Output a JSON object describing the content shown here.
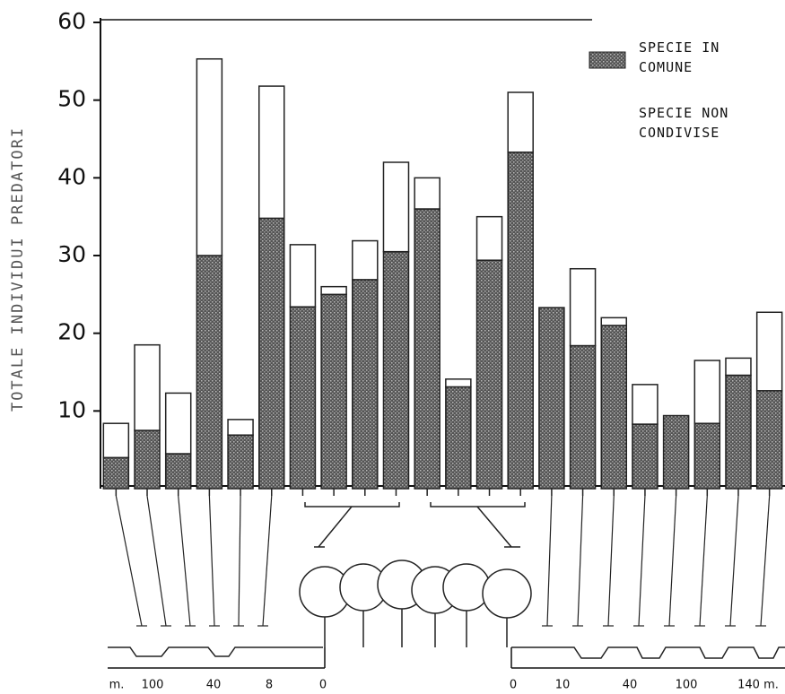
{
  "chart_data": {
    "type": "stacked-bar",
    "y_label": "TOTALE INDIVIDUI PREDATORI",
    "categories": [
      null,
      null,
      null,
      null,
      null,
      null,
      null,
      null,
      null,
      null,
      null,
      null,
      null,
      null,
      null,
      null,
      null,
      null,
      null,
      null,
      null,
      null
    ],
    "series": [
      {
        "name": "SPECIE IN COMUNE",
        "color": "#555555",
        "values": [
          4,
          7.5,
          4.5,
          30,
          6.9,
          34.8,
          23.4,
          25,
          26.9,
          30.5,
          36,
          13.1,
          29.4,
          43.3,
          23.3,
          18.4,
          21,
          8.3,
          9.4,
          8.4,
          14.6,
          12.6
        ]
      },
      {
        "name": "SPECIE NON CONDIVISE",
        "color": "#ffffff",
        "values": [
          4.4,
          11,
          7.8,
          25.3,
          2,
          17,
          8,
          1,
          5,
          11.5,
          4,
          1,
          5.6,
          7.7,
          0,
          9.9,
          1,
          5.1,
          0,
          8.1,
          2.2,
          10.1
        ]
      }
    ],
    "ylim": [
      0,
      60
    ],
    "yticks": [
      10,
      20,
      30,
      40,
      50,
      60
    ],
    "distance_labels": [
      "m.",
      "100",
      "40",
      "8",
      "0",
      "0",
      "10",
      "40",
      "100",
      "140 m."
    ]
  }
}
